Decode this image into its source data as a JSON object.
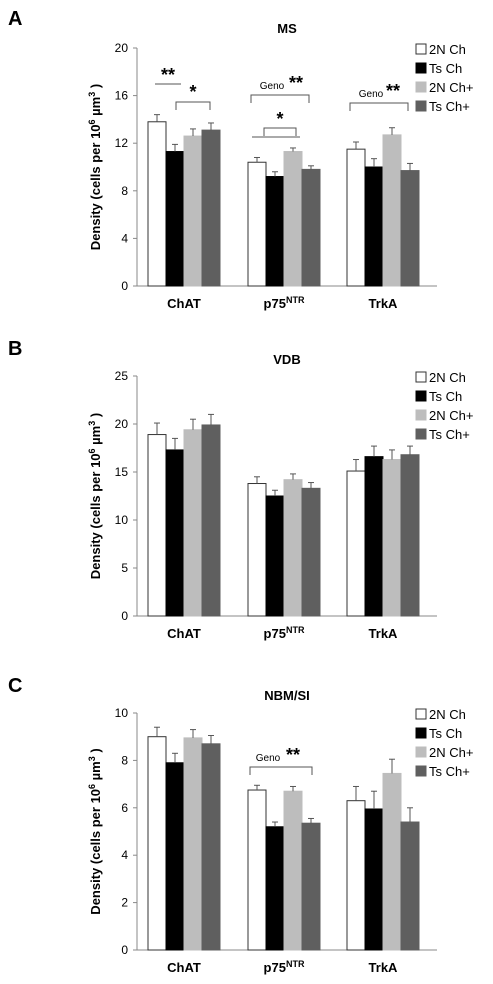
{
  "chart_data": [
    {
      "panel": "A",
      "type": "bar",
      "title": "MS",
      "ylabel": "Density (cells per 10^6 µm^3 )",
      "ylim": [
        0,
        20
      ],
      "yticks": [
        0,
        4,
        8,
        12,
        16,
        20
      ],
      "categories": [
        "ChAT",
        "p75^NTR",
        "TrkA"
      ],
      "series": [
        {
          "name": "2N Ch",
          "color": "#ffffff",
          "values": [
            13.8,
            10.4,
            11.5
          ],
          "errors": [
            0.6,
            0.4,
            0.6
          ]
        },
        {
          "name": "Ts Ch",
          "color": "#000000",
          "values": [
            11.3,
            9.2,
            10.0
          ],
          "errors": [
            0.6,
            0.4,
            0.7
          ]
        },
        {
          "name": "2N Ch+",
          "color": "#bdbdbd",
          "values": [
            12.6,
            11.3,
            12.7
          ],
          "errors": [
            0.6,
            0.3,
            0.6
          ]
        },
        {
          "name": "Ts Ch+",
          "color": "#5f5f5f",
          "values": [
            13.1,
            9.8,
            9.7
          ],
          "errors": [
            0.6,
            0.3,
            0.6
          ]
        }
      ],
      "annotations": [
        {
          "label": "**",
          "text": ""
        },
        {
          "label": "*",
          "text": ""
        },
        {
          "label": "**",
          "text": "Geno"
        },
        {
          "label": "*",
          "text": ""
        },
        {
          "label": "**",
          "text": "Geno"
        }
      ]
    },
    {
      "panel": "B",
      "type": "bar",
      "title": "VDB",
      "ylabel": "Density (cells per 10^6 µm^3 )",
      "ylim": [
        0,
        25
      ],
      "yticks": [
        0,
        5,
        10,
        15,
        20,
        25
      ],
      "categories": [
        "ChAT",
        "p75^NTR",
        "TrkA"
      ],
      "series": [
        {
          "name": "2N Ch",
          "color": "#ffffff",
          "values": [
            18.9,
            13.8,
            15.1
          ],
          "errors": [
            1.2,
            0.7,
            1.2
          ]
        },
        {
          "name": "Ts Ch",
          "color": "#000000",
          "values": [
            17.3,
            12.5,
            16.6
          ],
          "errors": [
            1.2,
            0.6,
            1.1
          ]
        },
        {
          "name": "2N Ch+",
          "color": "#bdbdbd",
          "values": [
            19.4,
            14.2,
            16.3
          ],
          "errors": [
            1.1,
            0.6,
            1.0
          ]
        },
        {
          "name": "Ts Ch+",
          "color": "#5f5f5f",
          "values": [
            19.9,
            13.3,
            16.8
          ],
          "errors": [
            1.1,
            0.6,
            0.9
          ]
        }
      ],
      "annotations": []
    },
    {
      "panel": "C",
      "type": "bar",
      "title": "NBM/SI",
      "ylabel": "Density (cells per 10^6 µm^3 )",
      "ylim": [
        0,
        10
      ],
      "yticks": [
        0,
        2,
        4,
        6,
        8,
        10
      ],
      "categories": [
        "ChAT",
        "p75^NTR",
        "TrkA"
      ],
      "series": [
        {
          "name": "2N Ch",
          "color": "#ffffff",
          "values": [
            9.0,
            6.75,
            6.3
          ],
          "errors": [
            0.4,
            0.2,
            0.6
          ]
        },
        {
          "name": "Ts Ch",
          "color": "#000000",
          "values": [
            7.9,
            5.2,
            5.95
          ],
          "errors": [
            0.4,
            0.2,
            0.75
          ]
        },
        {
          "name": "2N Ch+",
          "color": "#bdbdbd",
          "values": [
            8.95,
            6.7,
            7.45
          ],
          "errors": [
            0.35,
            0.2,
            0.6
          ]
        },
        {
          "name": "Ts Ch+",
          "color": "#5f5f5f",
          "values": [
            8.7,
            5.35,
            5.4
          ],
          "errors": [
            0.35,
            0.2,
            0.6
          ]
        }
      ],
      "annotations": [
        {
          "label": "**",
          "text": "Geno"
        }
      ]
    }
  ]
}
